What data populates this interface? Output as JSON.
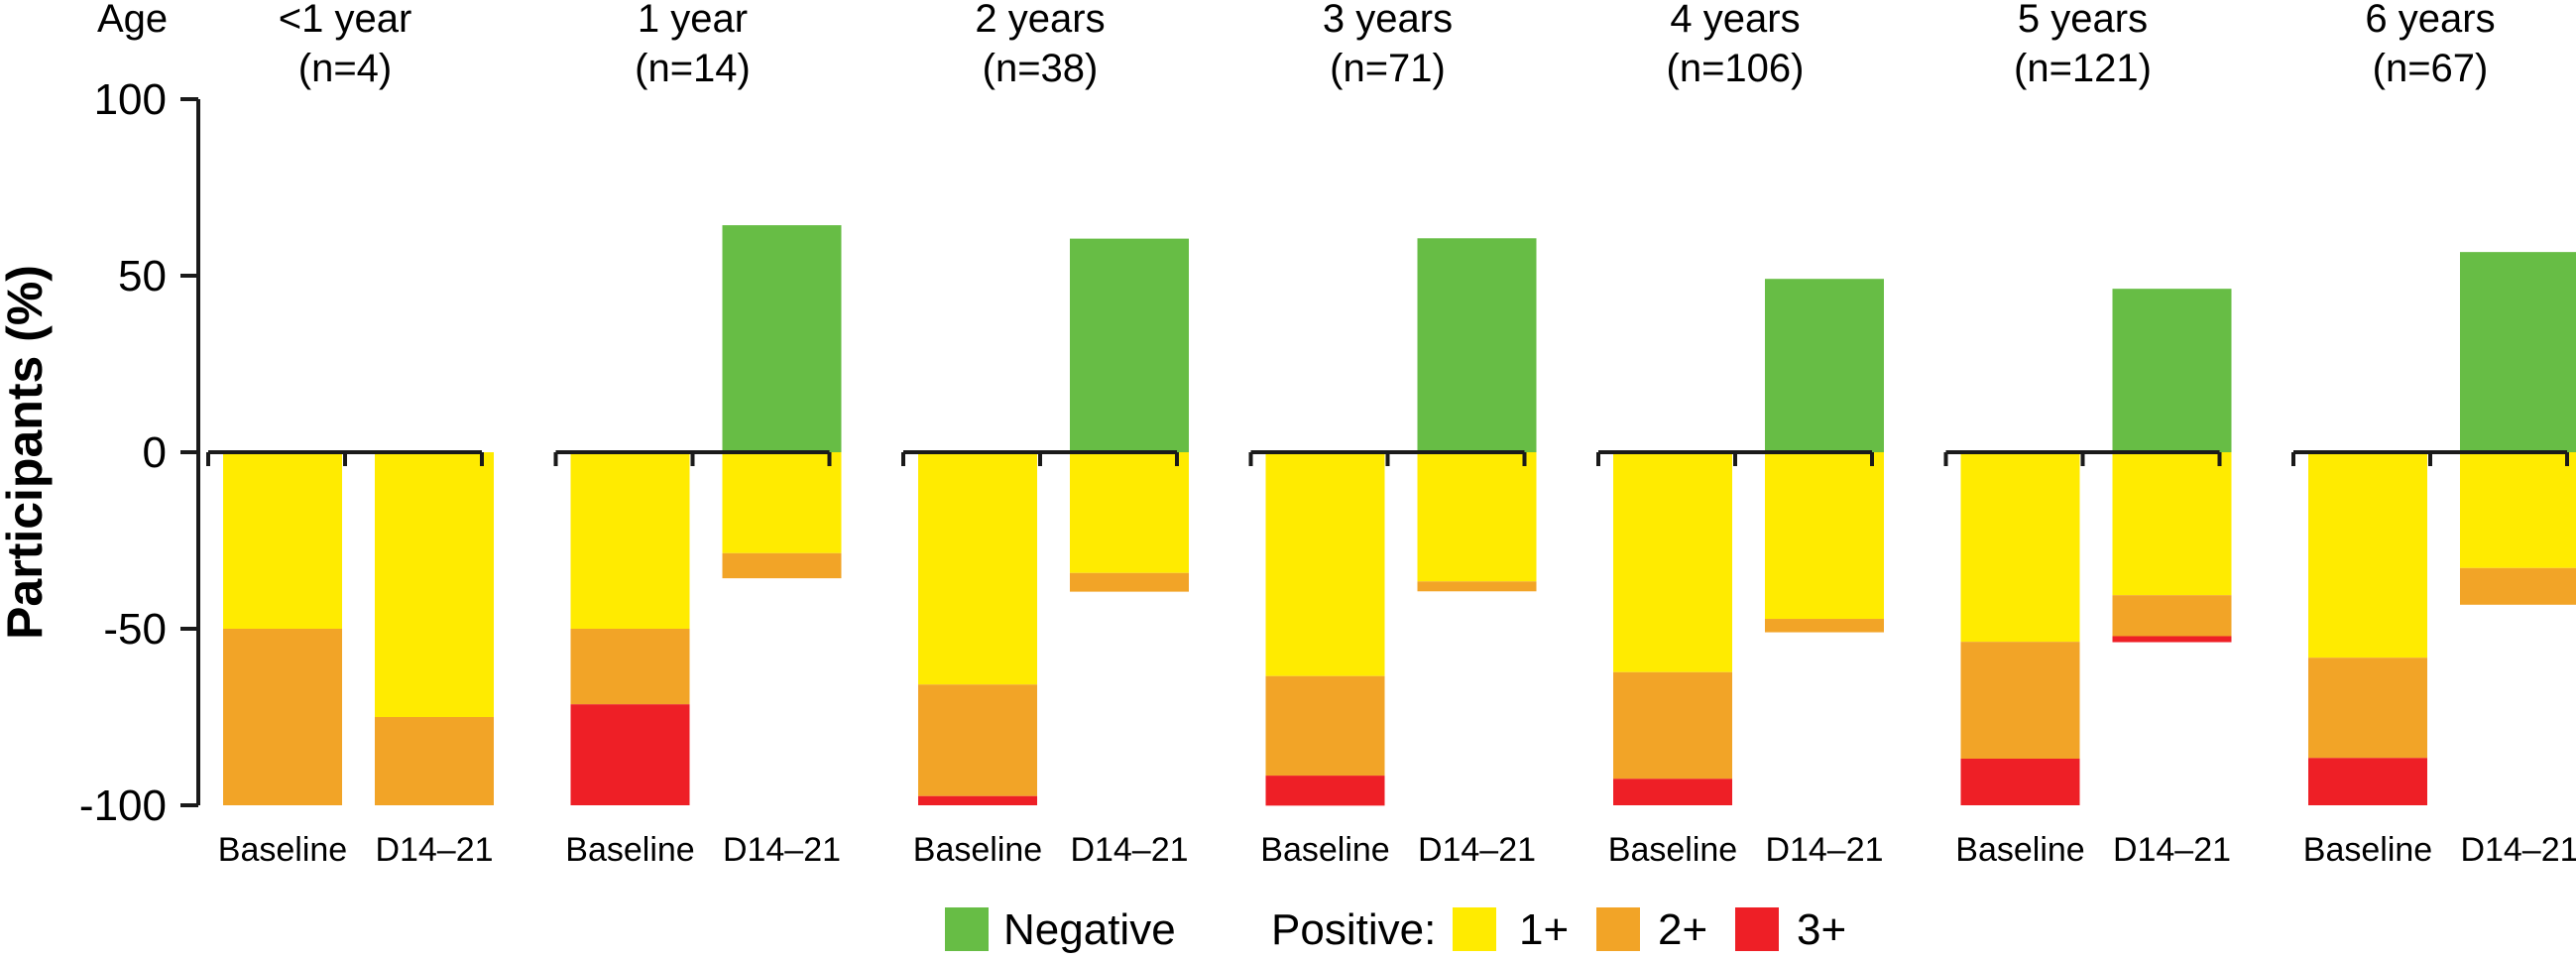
{
  "chart_data": {
    "type": "bar",
    "stacked": true,
    "age_label": "Age",
    "ylabel": "Participants (%)",
    "ylim": [
      -100,
      100
    ],
    "yticks": [
      100,
      50,
      0,
      -50,
      -100
    ],
    "ytick_labels": [
      "100",
      "50",
      "0",
      "-50",
      "-100"
    ],
    "colors": {
      "Negative": "#67BD45",
      "1+": "#FFEB00",
      "2+": "#F2A427",
      "3+": "#EE1F26"
    },
    "groups": [
      {
        "label": "<1 year",
        "n": "(n=4)",
        "bars": [
          {
            "category": "Baseline",
            "negative": 0,
            "p1": 50,
            "p2": 50,
            "p3": 0
          },
          {
            "category": "D14–21",
            "negative": 0,
            "p1": 75,
            "p2": 25,
            "p3": 0
          }
        ]
      },
      {
        "label": "1 year",
        "n": "(n=14)",
        "bars": [
          {
            "category": "Baseline",
            "negative": 0,
            "p1": 50,
            "p2": 21.4,
            "p3": 28.6
          },
          {
            "category": "D14–21",
            "negative": 64.3,
            "p1": 28.6,
            "p2": 7.1,
            "p3": 0
          }
        ]
      },
      {
        "label": "2 years",
        "n": "(n=38)",
        "bars": [
          {
            "category": "Baseline",
            "negative": 0,
            "p1": 65.8,
            "p2": 31.6,
            "p3": 2.6
          },
          {
            "category": "D14–21",
            "negative": 60.5,
            "p1": 34.2,
            "p2": 5.3,
            "p3": 0
          }
        ]
      },
      {
        "label": "3 years",
        "n": "(n=71)",
        "bars": [
          {
            "category": "Baseline",
            "negative": 0,
            "p1": 63.4,
            "p2": 28.2,
            "p3": 8.5
          },
          {
            "category": "D14–21",
            "negative": 60.6,
            "p1": 36.6,
            "p2": 2.8,
            "p3": 0
          }
        ]
      },
      {
        "label": "4 years",
        "n": "(n=106)",
        "bars": [
          {
            "category": "Baseline",
            "negative": 0,
            "p1": 62.3,
            "p2": 30.2,
            "p3": 7.5
          },
          {
            "category": "D14–21",
            "negative": 49.1,
            "p1": 47.2,
            "p2": 3.8,
            "p3": 0
          }
        ]
      },
      {
        "label": "5 years",
        "n": "(n=121)",
        "bars": [
          {
            "category": "Baseline",
            "negative": 0,
            "p1": 53.7,
            "p2": 33.1,
            "p3": 13.2
          },
          {
            "category": "D14–21",
            "negative": 46.3,
            "p1": 40.5,
            "p2": 11.6,
            "p3": 1.7
          }
        ]
      },
      {
        "label": "6 years",
        "n": "(n=67)",
        "bars": [
          {
            "category": "Baseline",
            "negative": 0,
            "p1": 58.2,
            "p2": 28.4,
            "p3": 13.4
          },
          {
            "category": "D14–21",
            "negative": 56.7,
            "p1": 32.8,
            "p2": 10.4,
            "p3": 0
          }
        ]
      }
    ],
    "legend": {
      "negative_label": "Negative",
      "positive_label": "Positive:",
      "p1_label": "1+",
      "p2_label": "2+",
      "p3_label": "3+"
    }
  }
}
